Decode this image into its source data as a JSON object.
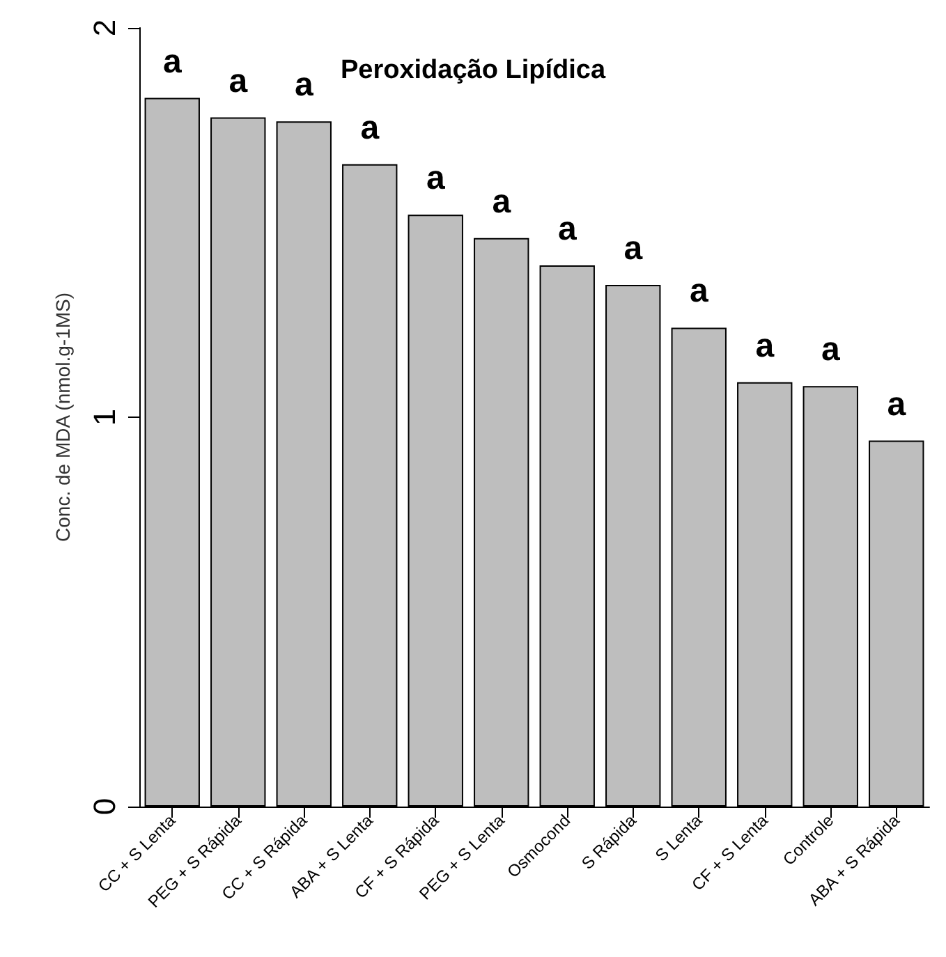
{
  "chart_data": {
    "type": "bar",
    "title": "Peroxidação Lipídica",
    "ylabel": "Conc. de MDA (nmol.g-1MS)",
    "categories": [
      "CC + S Lenta",
      "PEG + S Rápida",
      "CC + S Rápida",
      "ABA + S Lenta",
      "CF + S Rápida",
      "PEG + S Lenta",
      "Osmocond",
      "S Rápida",
      "S Lenta",
      "CF + S Lenta",
      "Controle",
      "ABA + S Rápida"
    ],
    "values": [
      1.82,
      1.77,
      1.76,
      1.65,
      1.52,
      1.46,
      1.39,
      1.34,
      1.23,
      1.09,
      1.08,
      0.94
    ],
    "value_labels": [
      "a",
      "a",
      "a",
      "a",
      "a",
      "a",
      "a",
      "a",
      "a",
      "a",
      "a",
      "a"
    ],
    "color": "#bebebe",
    "ylim": [
      0,
      2
    ],
    "yticks": [
      0,
      1,
      2
    ],
    "grid": false
  }
}
